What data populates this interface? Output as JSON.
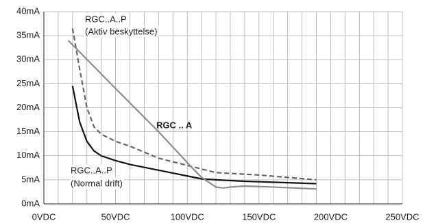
{
  "chart_data": {
    "type": "line",
    "annotations": [
      "RGC..A..P",
      "(Aktiv beskyttelse)",
      "RGC .. A",
      "RGC..A..P",
      "(Normal drift)"
    ],
    "series": [
      {
        "color": "#111111",
        "style": "solid",
        "x": [
          20,
          25,
          30,
          35,
          40,
          50,
          60,
          80,
          100,
          110,
          120,
          140,
          160,
          190
        ],
        "values": [
          24.5,
          17,
          13,
          11,
          10,
          9,
          8.2,
          7,
          5.8,
          5.2,
          5,
          4.7,
          4.5,
          4.2
        ]
      },
      {
        "color": "#666666",
        "style": "dashed",
        "x": [
          20,
          25,
          30,
          35,
          40,
          50,
          60,
          80,
          100,
          120,
          150,
          190
        ],
        "values": [
          36.5,
          28,
          20,
          16,
          14.5,
          13,
          12,
          9.5,
          8,
          6.5,
          6,
          5
        ]
      },
      {
        "color": "#8c8c8c",
        "style": "solid",
        "x": [
          17,
          50,
          80,
          105,
          110,
          120,
          125,
          130,
          140,
          160,
          190
        ],
        "values": [
          34,
          24,
          15,
          7,
          5.5,
          3.5,
          3.3,
          3.5,
          3.7,
          3.5,
          3.1
        ]
      }
    ],
    "xlim": [
      0,
      250
    ],
    "xticks": [
      {
        "value": 0,
        "label": "0VDC"
      },
      {
        "value": 50,
        "label": "50VDC"
      },
      {
        "value": 100,
        "label": "100VDC"
      },
      {
        "value": 150,
        "label": "150VDC"
      },
      {
        "value": 200,
        "label": "200VDC"
      },
      {
        "value": 250,
        "label": "250VDC"
      }
    ],
    "ylim": [
      0,
      40
    ],
    "yticks": [
      {
        "value": 0,
        "label": "0mA"
      },
      {
        "value": 5,
        "label": "5mA"
      },
      {
        "value": 10,
        "label": "10mA"
      },
      {
        "value": 15,
        "label": "15mA"
      },
      {
        "value": 20,
        "label": "20mA"
      },
      {
        "value": 25,
        "label": "25mA"
      },
      {
        "value": 30,
        "label": "30mA"
      },
      {
        "value": 35,
        "label": "35mA"
      },
      {
        "value": 40,
        "label": "40mA"
      }
    ],
    "grid": true
  }
}
